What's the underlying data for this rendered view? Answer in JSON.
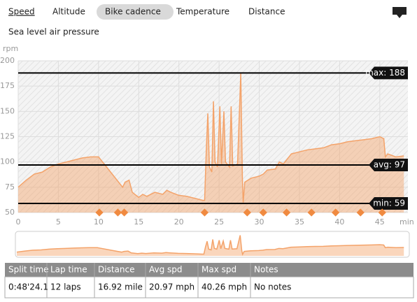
{
  "tabs": {
    "items": [
      "Speed",
      "Altitude",
      "Bike cadence",
      "Temperature",
      "Distance",
      "Sea level air pressure"
    ],
    "selected": 2
  },
  "chart_data": {
    "type": "area",
    "y_label": "rpm",
    "x_label": "min",
    "xlim": [
      0,
      48.5
    ],
    "xticks": [
      0,
      5,
      10,
      15,
      20,
      25,
      30,
      35,
      40,
      45
    ],
    "ylim": [
      50,
      200
    ],
    "yticks": [
      50,
      75,
      100,
      125,
      150,
      175,
      200
    ],
    "reference_lines": [
      {
        "value": 188,
        "label": "max: 188"
      },
      {
        "value": 97,
        "label": "avg: 97"
      },
      {
        "value": 59,
        "label": "min: 59"
      }
    ],
    "lap_markers": [
      10.1,
      12.4,
      13.2,
      23.2,
      28.5,
      30.5,
      33.4,
      36.5,
      39.5,
      42.6,
      45.3
    ],
    "series": [
      {
        "name": "Bike cadence",
        "color": "#f4a36a",
        "x": [
          0,
          1,
          2,
          3,
          4,
          5,
          6,
          7,
          8,
          9,
          10,
          10.2,
          11.5,
          13,
          13.3,
          13.8,
          14.2,
          15,
          15.5,
          16,
          17,
          18,
          18.5,
          19,
          20,
          21,
          22,
          23,
          23.2,
          23.4,
          23.6,
          23.8,
          24.1,
          24.3,
          24.5,
          24.8,
          25.1,
          25.3,
          25.6,
          25.8,
          26.3,
          26.5,
          26.7,
          27.3,
          27.7,
          27.9,
          28.0,
          28.2,
          29,
          30,
          30.5,
          31,
          32,
          32.5,
          33,
          34,
          35,
          36,
          37,
          38,
          39,
          40,
          41,
          42,
          43,
          44,
          45,
          45.5,
          45.7,
          46,
          47,
          48
        ],
        "values": [
          75,
          82,
          88,
          90,
          95,
          98,
          100,
          102,
          104,
          105,
          105,
          103,
          90,
          75,
          80,
          82,
          70,
          65,
          68,
          66,
          70,
          68,
          72,
          70,
          67,
          66,
          64,
          62,
          62,
          110,
          148,
          95,
          90,
          160,
          100,
          95,
          155,
          98,
          150,
          100,
          95,
          155,
          96,
          98,
          188,
          85,
          60,
          80,
          84,
          86,
          88,
          92,
          93,
          100,
          98,
          108,
          110,
          112,
          113,
          114,
          117,
          118,
          120,
          121,
          122,
          123,
          125,
          123,
          105,
          108,
          105,
          106
        ]
      }
    ]
  },
  "table": {
    "header": [
      "Split time",
      "Lap time",
      "Distance",
      "Avg spd",
      "Max spd",
      "Notes"
    ],
    "rows": [
      [
        "0:48'24.1",
        "12 laps",
        "16.92 mile",
        "20.97 mph",
        "40.26 mph",
        "No notes"
      ]
    ]
  }
}
